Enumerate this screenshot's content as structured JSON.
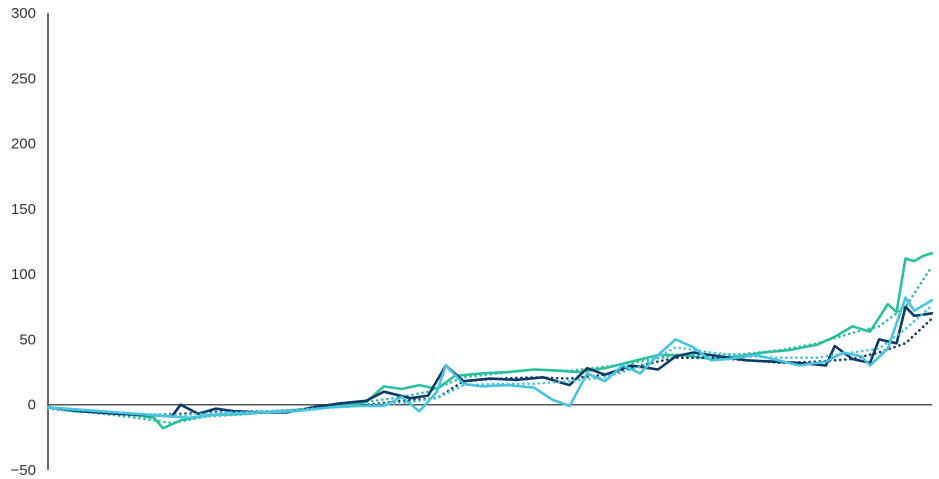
{
  "chart_data": {
    "type": "line",
    "title": "",
    "xlabel": "",
    "ylabel": "",
    "ylim": [
      -50,
      300
    ],
    "yticks": [
      300,
      250,
      200,
      150,
      100,
      50,
      0,
      -50
    ],
    "ytick_labels": [
      "300",
      "250",
      "200",
      "150",
      "100",
      "50",
      "0",
      "−50"
    ],
    "x_range": [
      0,
      100
    ],
    "grid": false,
    "legend": "none",
    "series": [
      {
        "color": "#2bbf9d",
        "style": "solid",
        "points": [
          [
            0,
            -2
          ],
          [
            3,
            -5
          ],
          [
            6,
            -6
          ],
          [
            9,
            -7
          ],
          [
            12,
            -10
          ],
          [
            13,
            -18
          ],
          [
            15,
            -12
          ],
          [
            18,
            -8
          ],
          [
            22,
            -7
          ],
          [
            26,
            -5
          ],
          [
            29,
            -4
          ],
          [
            33,
            -1
          ],
          [
            36,
            2
          ],
          [
            38,
            14
          ],
          [
            40,
            12
          ],
          [
            42,
            15
          ],
          [
            44,
            12
          ],
          [
            46,
            22
          ],
          [
            49,
            24
          ],
          [
            52,
            25
          ],
          [
            55,
            27
          ],
          [
            58,
            26
          ],
          [
            60,
            25
          ],
          [
            63,
            28
          ],
          [
            66,
            33
          ],
          [
            69,
            38
          ],
          [
            72,
            38
          ],
          [
            75,
            35
          ],
          [
            78,
            37
          ],
          [
            81,
            40
          ],
          [
            84,
            42
          ],
          [
            87,
            46
          ],
          [
            89,
            52
          ],
          [
            91,
            60
          ],
          [
            93,
            56
          ],
          [
            95,
            77
          ],
          [
            96,
            71
          ],
          [
            97,
            112
          ],
          [
            98,
            110
          ],
          [
            99,
            114
          ],
          [
            100,
            116
          ]
        ]
      },
      {
        "color": "#2bbf9d",
        "style": "dotted",
        "points": [
          [
            0,
            -3
          ],
          [
            5,
            -6
          ],
          [
            10,
            -10
          ],
          [
            14,
            -14
          ],
          [
            18,
            -9
          ],
          [
            23,
            -7
          ],
          [
            27,
            -5
          ],
          [
            32,
            -2
          ],
          [
            37,
            3
          ],
          [
            40,
            6
          ],
          [
            43,
            10
          ],
          [
            47,
            21
          ],
          [
            51,
            24
          ],
          [
            55,
            27
          ],
          [
            59,
            26
          ],
          [
            63,
            29
          ],
          [
            67,
            33
          ],
          [
            71,
            38
          ],
          [
            75,
            38
          ],
          [
            79,
            39
          ],
          [
            83,
            42
          ],
          [
            87,
            47
          ],
          [
            91,
            55
          ],
          [
            94,
            60
          ],
          [
            97,
            75
          ],
          [
            100,
            106
          ]
        ]
      },
      {
        "color": "#0d3b66",
        "style": "solid",
        "points": [
          [
            0,
            -2
          ],
          [
            4,
            -5
          ],
          [
            8,
            -7
          ],
          [
            12,
            -8
          ],
          [
            14,
            -9
          ],
          [
            15,
            0
          ],
          [
            17,
            -7
          ],
          [
            19,
            -3
          ],
          [
            21,
            -5
          ],
          [
            24,
            -6
          ],
          [
            27,
            -6
          ],
          [
            30,
            -2
          ],
          [
            33,
            1
          ],
          [
            36,
            3
          ],
          [
            38,
            10
          ],
          [
            41,
            5
          ],
          [
            43,
            7
          ],
          [
            45,
            30
          ],
          [
            47,
            18
          ],
          [
            50,
            20
          ],
          [
            53,
            19
          ],
          [
            56,
            21
          ],
          [
            59,
            15
          ],
          [
            61,
            28
          ],
          [
            63,
            23
          ],
          [
            66,
            30
          ],
          [
            69,
            27
          ],
          [
            71,
            37
          ],
          [
            73,
            40
          ],
          [
            76,
            37
          ],
          [
            79,
            34
          ],
          [
            82,
            33
          ],
          [
            85,
            32
          ],
          [
            88,
            30
          ],
          [
            89,
            45
          ],
          [
            91,
            35
          ],
          [
            93,
            32
          ],
          [
            94,
            50
          ],
          [
            96,
            47
          ],
          [
            97,
            75
          ],
          [
            98,
            68
          ],
          [
            100,
            70
          ]
        ]
      },
      {
        "color": "#0d3b66",
        "style": "dotted",
        "points": [
          [
            0,
            -3
          ],
          [
            5,
            -6
          ],
          [
            10,
            -8
          ],
          [
            15,
            -7
          ],
          [
            20,
            -5
          ],
          [
            25,
            -5
          ],
          [
            30,
            -3
          ],
          [
            35,
            -1
          ],
          [
            40,
            3
          ],
          [
            44,
            5
          ],
          [
            47,
            18
          ],
          [
            51,
            20
          ],
          [
            55,
            21
          ],
          [
            59,
            20
          ],
          [
            63,
            23
          ],
          [
            67,
            30
          ],
          [
            71,
            36
          ],
          [
            75,
            36
          ],
          [
            79,
            34
          ],
          [
            83,
            32
          ],
          [
            87,
            33
          ],
          [
            91,
            35
          ],
          [
            94,
            40
          ],
          [
            97,
            47
          ],
          [
            100,
            66
          ]
        ]
      },
      {
        "color": "#48c4e0",
        "style": "solid",
        "points": [
          [
            0,
            -2
          ],
          [
            4,
            -4
          ],
          [
            8,
            -6
          ],
          [
            12,
            -8
          ],
          [
            16,
            -10
          ],
          [
            20,
            -7
          ],
          [
            24,
            -6
          ],
          [
            28,
            -5
          ],
          [
            32,
            -2
          ],
          [
            35,
            -1
          ],
          [
            38,
            -1
          ],
          [
            40,
            6
          ],
          [
            42,
            -5
          ],
          [
            44,
            10
          ],
          [
            45,
            30
          ],
          [
            47,
            16
          ],
          [
            49,
            14
          ],
          [
            52,
            15
          ],
          [
            55,
            13
          ],
          [
            57,
            4
          ],
          [
            59,
            -1
          ],
          [
            61,
            24
          ],
          [
            63,
            18
          ],
          [
            65,
            30
          ],
          [
            67,
            24
          ],
          [
            69,
            38
          ],
          [
            71,
            50
          ],
          [
            73,
            44
          ],
          [
            75,
            34
          ],
          [
            77,
            35
          ],
          [
            80,
            38
          ],
          [
            82,
            35
          ],
          [
            85,
            30
          ],
          [
            88,
            33
          ],
          [
            90,
            40
          ],
          [
            92,
            37
          ],
          [
            93,
            30
          ],
          [
            95,
            43
          ],
          [
            97,
            82
          ],
          [
            98,
            72
          ],
          [
            100,
            80
          ]
        ]
      },
      {
        "color": "#48c4e0",
        "style": "dotted",
        "points": [
          [
            0,
            -3
          ],
          [
            5,
            -5
          ],
          [
            10,
            -7
          ],
          [
            15,
            -8
          ],
          [
            20,
            -6
          ],
          [
            25,
            -5
          ],
          [
            30,
            -3
          ],
          [
            35,
            -1
          ],
          [
            40,
            1
          ],
          [
            44,
            5
          ],
          [
            47,
            15
          ],
          [
            51,
            16
          ],
          [
            55,
            16
          ],
          [
            59,
            18
          ],
          [
            63,
            21
          ],
          [
            67,
            29
          ],
          [
            71,
            44
          ],
          [
            75,
            40
          ],
          [
            79,
            37
          ],
          [
            83,
            36
          ],
          [
            87,
            36
          ],
          [
            91,
            40
          ],
          [
            94,
            43
          ],
          [
            97,
            58
          ],
          [
            100,
            76
          ]
        ]
      }
    ]
  }
}
